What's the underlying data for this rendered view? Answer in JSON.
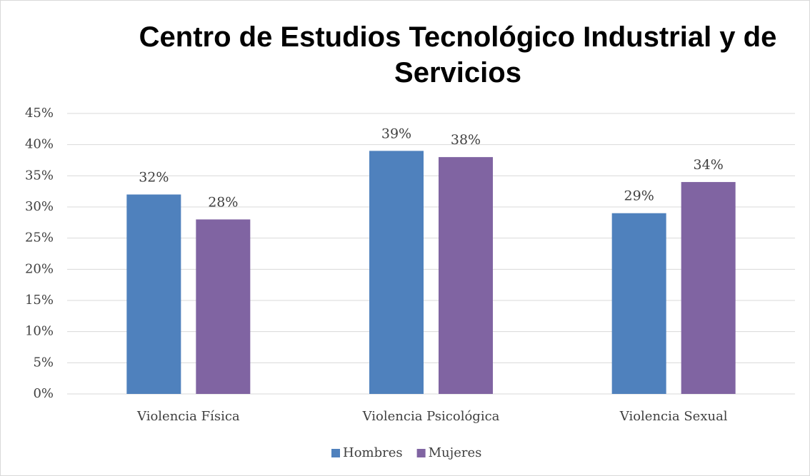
{
  "chart_data": {
    "type": "bar",
    "title": "Centro de Estudios Tecnológico Industrial y de Servicios",
    "categories": [
      "Violencia Física",
      "Violencia Psicológica",
      "Violencia Sexual"
    ],
    "series": [
      {
        "name": "Hombres",
        "color": "#4f81bd",
        "values": [
          32,
          39,
          29
        ],
        "value_labels": [
          "32%",
          "39%",
          "29%"
        ]
      },
      {
        "name": "Mujeres",
        "color": "#8064a2",
        "values": [
          28,
          38,
          34
        ],
        "value_labels": [
          "28%",
          "38%",
          "34%"
        ]
      }
    ],
    "ylim": [
      0,
      45
    ],
    "yticks": [
      {
        "value": 0,
        "label": "0%"
      },
      {
        "value": 5,
        "label": "5%"
      },
      {
        "value": 10,
        "label": "10%"
      },
      {
        "value": 15,
        "label": "15%"
      },
      {
        "value": 20,
        "label": "20%"
      },
      {
        "value": 25,
        "label": "25%"
      },
      {
        "value": 30,
        "label": "30%"
      },
      {
        "value": 35,
        "label": "35%"
      },
      {
        "value": 40,
        "label": "40%"
      },
      {
        "value": 45,
        "label": "45%"
      }
    ],
    "grid": true,
    "legend": "bottom"
  }
}
